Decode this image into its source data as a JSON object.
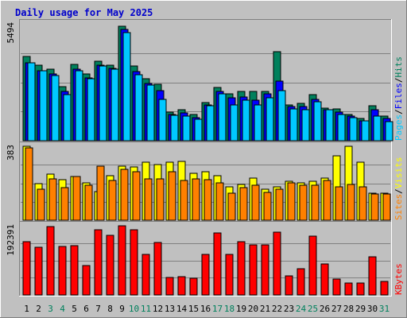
{
  "title": "Daily usage for May 2025",
  "colors": {
    "background": "#c0c0c0",
    "title": "#0000cc",
    "hits": "#00805c",
    "files": "#0000ff",
    "pages": "#00c8ff",
    "visits": "#ffff00",
    "sites": "#ff8000",
    "kbytes": "#ff0000",
    "weekday_label": "#000000",
    "weekend_label": "#00805c",
    "separator": "#000000"
  },
  "icons": {
    "separator_glyph": "/"
  },
  "chart_data": [
    {
      "type": "bar",
      "name": "hits-files-pages",
      "max_label": "5494",
      "ylim": [
        0,
        5494
      ],
      "legend": [
        {
          "label": "Pages",
          "color": "#00c8ff"
        },
        {
          "label": "Files",
          "color": "#0000ff"
        },
        {
          "label": "Hits",
          "color": "#00805c"
        }
      ],
      "categories": [
        "1",
        "2",
        "3",
        "4",
        "5",
        "6",
        "7",
        "8",
        "9",
        "10",
        "11",
        "12",
        "13",
        "14",
        "15",
        "16",
        "17",
        "18",
        "19",
        "20",
        "21",
        "22",
        "23",
        "24",
        "25",
        "26",
        "27",
        "28",
        "29",
        "30",
        "31"
      ],
      "series": [
        {
          "name": "Hits",
          "values": [
            3950,
            3550,
            3350,
            2550,
            3600,
            3150,
            3750,
            3550,
            5400,
            3500,
            2900,
            2650,
            1350,
            1450,
            1250,
            1800,
            2500,
            2200,
            2300,
            2300,
            2300,
            4200,
            1700,
            1750,
            2150,
            1550,
            1500,
            1250,
            1050,
            1650,
            1150
          ]
        },
        {
          "name": "Files",
          "values": [
            3650,
            3300,
            3150,
            2300,
            3350,
            2950,
            3550,
            3400,
            5250,
            3250,
            2700,
            2350,
            1250,
            1300,
            1100,
            1700,
            2300,
            2000,
            2050,
            1900,
            2200,
            2800,
            1600,
            1600,
            1950,
            1450,
            1350,
            1150,
            950,
            1450,
            1050
          ]
        },
        {
          "name": "Pages",
          "values": [
            3650,
            3300,
            3050,
            2150,
            3300,
            2900,
            3500,
            3350,
            5100,
            3100,
            2600,
            1950,
            1200,
            1150,
            1000,
            1650,
            2200,
            1700,
            1900,
            1700,
            2000,
            2350,
            1500,
            1450,
            1850,
            1450,
            1250,
            1100,
            950,
            1150,
            900
          ]
        }
      ]
    },
    {
      "type": "bar",
      "name": "visits-sites",
      "max_label": "383",
      "ylim": [
        0,
        383
      ],
      "legend": [
        {
          "label": "Sites",
          "color": "#ff8000"
        },
        {
          "label": "Visits",
          "color": "#ffff00"
        }
      ],
      "categories": [
        "1",
        "2",
        "3",
        "4",
        "5",
        "6",
        "7",
        "8",
        "9",
        "10",
        "11",
        "12",
        "13",
        "14",
        "15",
        "16",
        "17",
        "18",
        "19",
        "20",
        "21",
        "22",
        "23",
        "24",
        "25",
        "26",
        "27",
        "28",
        "29",
        "30",
        "31"
      ],
      "series": [
        {
          "name": "Visits",
          "values": [
            383,
            190,
            240,
            210,
            225,
            195,
            150,
            230,
            280,
            275,
            300,
            290,
            300,
            305,
            245,
            250,
            230,
            175,
            185,
            220,
            160,
            175,
            200,
            195,
            200,
            220,
            335,
            383,
            300,
            140,
            140
          ]
        },
        {
          "name": "Sites",
          "values": [
            375,
            160,
            215,
            170,
            225,
            180,
            280,
            205,
            265,
            250,
            215,
            215,
            250,
            205,
            215,
            210,
            195,
            140,
            170,
            180,
            145,
            160,
            195,
            180,
            180,
            205,
            175,
            185,
            175,
            135,
            135
          ]
        }
      ]
    },
    {
      "type": "bar",
      "name": "kbytes",
      "max_label": "192391",
      "ylim": [
        0,
        192391
      ],
      "legend": [
        {
          "label": "KBytes",
          "color": "#ff0000"
        }
      ],
      "categories": [
        "1",
        "2",
        "3",
        "4",
        "5",
        "6",
        "7",
        "8",
        "9",
        "10",
        "11",
        "12",
        "13",
        "14",
        "15",
        "16",
        "17",
        "18",
        "19",
        "20",
        "21",
        "22",
        "23",
        "24",
        "25",
        "26",
        "27",
        "28",
        "29",
        "30",
        "31"
      ],
      "series": [
        {
          "name": "KBytes",
          "values": [
            148000,
            133000,
            190000,
            134000,
            138000,
            81000,
            182000,
            166000,
            192391,
            182000,
            112000,
            146000,
            48000,
            51000,
            46000,
            113000,
            172000,
            112000,
            148000,
            140000,
            140000,
            174000,
            54000,
            73000,
            163000,
            86000,
            44000,
            34000,
            33000,
            106000,
            38000
          ]
        }
      ]
    }
  ],
  "days": [
    {
      "label": "1",
      "weekend": false
    },
    {
      "label": "2",
      "weekend": false
    },
    {
      "label": "3",
      "weekend": true
    },
    {
      "label": "4",
      "weekend": true
    },
    {
      "label": "5",
      "weekend": false
    },
    {
      "label": "6",
      "weekend": false
    },
    {
      "label": "7",
      "weekend": false
    },
    {
      "label": "8",
      "weekend": false
    },
    {
      "label": "9",
      "weekend": false
    },
    {
      "label": "10",
      "weekend": true
    },
    {
      "label": "11",
      "weekend": true
    },
    {
      "label": "12",
      "weekend": false
    },
    {
      "label": "13",
      "weekend": false
    },
    {
      "label": "14",
      "weekend": false
    },
    {
      "label": "15",
      "weekend": false
    },
    {
      "label": "16",
      "weekend": false
    },
    {
      "label": "17",
      "weekend": true
    },
    {
      "label": "18",
      "weekend": true
    },
    {
      "label": "19",
      "weekend": false
    },
    {
      "label": "20",
      "weekend": false
    },
    {
      "label": "21",
      "weekend": false
    },
    {
      "label": "22",
      "weekend": false
    },
    {
      "label": "23",
      "weekend": false
    },
    {
      "label": "24",
      "weekend": true
    },
    {
      "label": "25",
      "weekend": true
    },
    {
      "label": "26",
      "weekend": false
    },
    {
      "label": "27",
      "weekend": false
    },
    {
      "label": "28",
      "weekend": false
    },
    {
      "label": "29",
      "weekend": false
    },
    {
      "label": "30",
      "weekend": false
    },
    {
      "label": "31",
      "weekend": true
    }
  ]
}
